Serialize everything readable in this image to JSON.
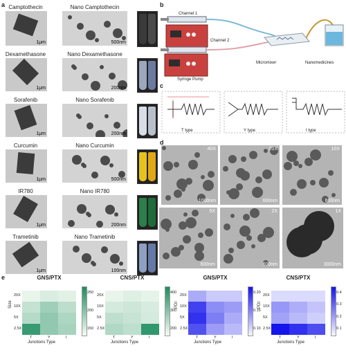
{
  "panels": {
    "a": {
      "label": "a",
      "rows": [
        {
          "drug": "Camptothecin",
          "nano": "Nano Camptothecin",
          "scale_drug": "1μm",
          "scale_nano": "500nm"
        },
        {
          "drug": "Dexamethasone",
          "nano": "Nano Dexamethasone",
          "scale_drug": "1μm",
          "scale_nano": "200nm"
        },
        {
          "drug": "Sorafenib",
          "nano": "Nano Sorafenib",
          "scale_drug": "1μm",
          "scale_nano": "200nm"
        },
        {
          "drug": "Curcumin",
          "nano": "Nano Curcumin",
          "scale_drug": "1μm",
          "scale_nano": "500nm"
        },
        {
          "drug": "IR780",
          "nano": "Nano IR780",
          "scale_drug": "1μm",
          "scale_nano": "200nm"
        },
        {
          "drug": "Trametinib",
          "nano": "Nano Trametinib",
          "scale_drug": "1μm",
          "scale_nano": "100nm"
        }
      ],
      "vial_colors": [
        [
          "#3a3a3a",
          "#4a4a4a"
        ],
        [
          "#9aa7bd",
          "#6d7aa0"
        ],
        [
          "#d8dde6",
          "#b9c0cc"
        ],
        [
          "#e6c21f",
          "#e0a815"
        ],
        [
          "#2c7f4a",
          "#1e6b3a"
        ],
        [
          "#8d9fc2",
          "#6678a6"
        ]
      ]
    },
    "b": {
      "label": "b",
      "channel1": "Channel 1",
      "channel2": "Channel 2",
      "pump": "Syringe Pump",
      "micromixer": "Micromixer",
      "nanomedicines": "Nanomedicines"
    },
    "c": {
      "label": "c",
      "types": [
        "T type",
        "Y type",
        "I type"
      ]
    },
    "d": {
      "label": "d",
      "images": [
        {
          "mag": "40X",
          "scale": "1000nm"
        },
        {
          "mag": "20X",
          "scale": "600nm"
        },
        {
          "mag": "10X",
          "scale": "600nm"
        },
        {
          "mag": "5X",
          "scale": "600nm"
        },
        {
          "mag": "2X",
          "scale": "600nm"
        },
        {
          "mag": "1X",
          "scale": "3000nm"
        }
      ]
    },
    "e": {
      "label": "e",
      "heatmaps": [
        {
          "title": "GNS/PTX",
          "ylabel": "Size",
          "xlabel": "Junctions Type",
          "cmap": "green",
          "ticks": [
            "250",
            "200",
            "150"
          ]
        },
        {
          "title": "CNS/PTX",
          "ylabel": "",
          "xlabel": "Junctions Type",
          "cmap": "green",
          "ticks": [
            "400",
            "300",
            "200"
          ]
        },
        {
          "title": "GNS/PTX",
          "ylabel": "PDI",
          "xlabel": "Junctions Type",
          "cmap": "blue",
          "ticks": [
            "0.20",
            "0.15",
            "0.10"
          ]
        },
        {
          "title": "CNS/PTX",
          "ylabel": "PDI",
          "xlabel": "Junctions Type",
          "cmap": "blue",
          "ticks": [
            "0.4",
            "0.3",
            "0.2",
            "0.1"
          ]
        }
      ],
      "xcats": [
        "T",
        "Y",
        "I"
      ],
      "ycats": [
        "20X",
        "10X",
        "5X",
        "2.5X"
      ]
    }
  },
  "chart_data": [
    {
      "type": "heatmap",
      "title": "GNS/PTX",
      "xlabel": "Junctions Type",
      "ylabel": "Size",
      "x": [
        "T",
        "Y",
        "I"
      ],
      "y": [
        "20X",
        "10X",
        "5X",
        "2.5X"
      ],
      "values": [
        [
          140,
          150,
          145
        ],
        [
          165,
          190,
          170
        ],
        [
          175,
          200,
          180
        ],
        [
          260,
          200,
          185
        ]
      ],
      "colorbar_range": [
        130,
        280
      ]
    },
    {
      "type": "heatmap",
      "title": "CNS/PTX",
      "xlabel": "Junctions Type",
      "ylabel": "",
      "x": [
        "T",
        "Y",
        "I"
      ],
      "y": [
        "20X",
        "10X",
        "5X",
        "2.5X"
      ],
      "values": [
        [
          160,
          175,
          165
        ],
        [
          190,
          200,
          185
        ],
        [
          220,
          210,
          190
        ],
        [
          240,
          220,
          420
        ]
      ],
      "colorbar_range": [
        140,
        450
      ]
    },
    {
      "type": "heatmap",
      "title": "GNS/PTX",
      "xlabel": "Junctions Type",
      "ylabel": "PDI",
      "x": [
        "T",
        "Y",
        "I"
      ],
      "y": [
        "20X",
        "10X",
        "5X",
        "2.5X"
      ],
      "values": [
        [
          0.12,
          0.1,
          0.1
        ],
        [
          0.19,
          0.14,
          0.13
        ],
        [
          0.2,
          0.15,
          0.12
        ],
        [
          0.18,
          0.13,
          0.11
        ]
      ],
      "colorbar_range": [
        0.07,
        0.22
      ]
    },
    {
      "type": "heatmap",
      "title": "CNS/PTX",
      "xlabel": "Junctions Type",
      "ylabel": "PDI",
      "x": [
        "T",
        "Y",
        "I"
      ],
      "y": [
        "20X",
        "10X",
        "5X",
        "2.5X"
      ],
      "values": [
        [
          0.1,
          0.1,
          0.1
        ],
        [
          0.22,
          0.18,
          0.14
        ],
        [
          0.2,
          0.16,
          0.12
        ],
        [
          0.45,
          0.4,
          0.35
        ]
      ],
      "colorbar_range": [
        0.05,
        0.45
      ]
    }
  ]
}
